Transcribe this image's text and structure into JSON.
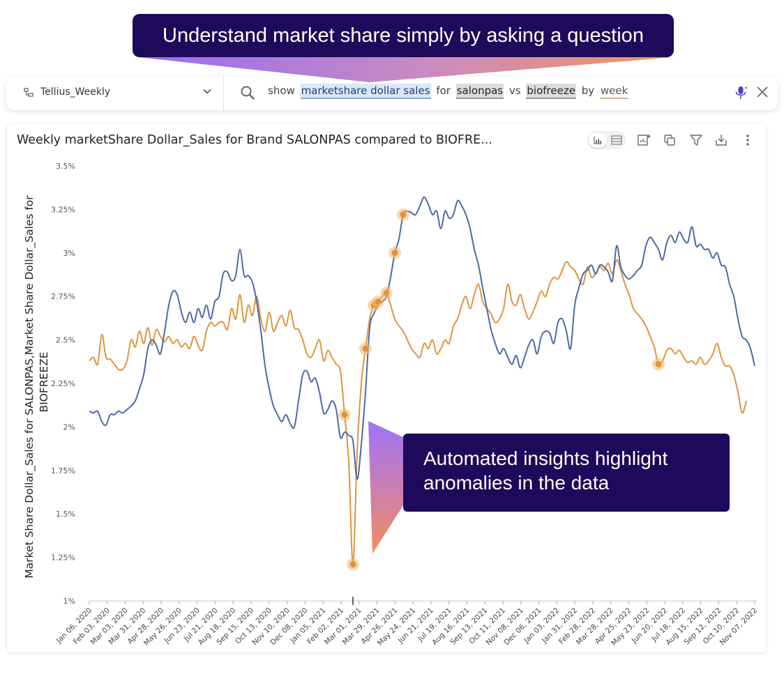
{
  "callouts": {
    "top": "Understand market share simply by asking a question",
    "bottom_line1": "Automated insights highlight",
    "bottom_line2": "anomalies in the data"
  },
  "search": {
    "dataset": "Tellius_Weekly",
    "tokens": [
      {
        "text": "show",
        "kind": "plain"
      },
      {
        "text": "marketshare dollar sales",
        "kind": "measure"
      },
      {
        "text": "for",
        "kind": "plain"
      },
      {
        "text": "salonpas",
        "kind": "entity"
      },
      {
        "text": "vs",
        "kind": "plain"
      },
      {
        "text": "biofreeze",
        "kind": "entity"
      },
      {
        "text": "by",
        "kind": "plain"
      },
      {
        "text": "week",
        "kind": "time"
      }
    ],
    "icons": [
      "database-icon",
      "chevron-down-icon",
      "search-icon",
      "microphone-icon",
      "close-icon"
    ]
  },
  "colors": {
    "callout_bg": "#1e0a5a",
    "salonpas": "#4a6aa5",
    "biofreeze": "#e0943e",
    "anomaly": "#f2b870"
  },
  "chart_data": {
    "type": "line",
    "title": "Weekly marketShare Dollar_Sales for Brand SALONPAS compared to BIOFRE...",
    "ylabel_line1": "Market Share Dollar_Sales for SALONPAS,Market Share Dollar_Sales for",
    "ylabel_line2": "BIOFREEZE",
    "xlabel": "",
    "ylim": [
      1,
      3.5
    ],
    "y_ticks": [
      "1%",
      "1.25%",
      "1.5%",
      "1.75%",
      "2%",
      "2.25%",
      "2.5%",
      "2.75%",
      "3%",
      "3.25%",
      "3.5%"
    ],
    "x_ticks": [
      "Jan 06, 2020",
      "Feb 03, 2020",
      "Mar 03, 2020",
      "Mar 31, 2020",
      "Apr 28, 2020",
      "May 26, 2020",
      "Jun 23, 2020",
      "Jul 21, 2020",
      "Aug 18, 2020",
      "Sep 15, 2020",
      "Oct 13, 2020",
      "Nov 10, 2020",
      "Dec 08, 2020",
      "Jan 05, 2021",
      "Feb 02, 2021",
      "Mar 01, 2021",
      "Mar 29, 2021",
      "Apr 26, 2021",
      "May 24, 2021",
      "Jun 21, 2021",
      "Jul 19, 2021",
      "Aug 16, 2021",
      "Sep 13, 2021",
      "Oct 11, 2021",
      "Nov 08, 2021",
      "Dec 06, 2021",
      "Jan 03, 2022",
      "Jan 31, 2022",
      "Feb 28, 2022",
      "Mar 28, 2022",
      "Apr 25, 2022",
      "May 23, 2022",
      "Jun 20, 2022",
      "Jul 18, 2022",
      "Aug 15, 2022",
      "Sep 12, 2022",
      "Oct 10, 2022",
      "Nov 07, 2022"
    ],
    "grid": false,
    "legend": "none",
    "series": [
      {
        "color": "#4a6aa5",
        "values": [
          2.09,
          2.08,
          2.09,
          2.03,
          2.01,
          2.07,
          2.07,
          2.09,
          2.08,
          2.1,
          2.12,
          2.15,
          2.22,
          2.3,
          2.45,
          2.5,
          2.47,
          2.42,
          2.55,
          2.7,
          2.78,
          2.76,
          2.66,
          2.6,
          2.66,
          2.6,
          2.68,
          2.63,
          2.7,
          2.62,
          2.72,
          2.75,
          2.88,
          2.89,
          2.84,
          2.87,
          3.02,
          2.87,
          2.87,
          2.83,
          2.72,
          2.55,
          2.35,
          2.22,
          2.12,
          2.07,
          2.03,
          2.07,
          2.02,
          2.0,
          2.15,
          2.3,
          2.32,
          2.26,
          2.28,
          2.2,
          2.08,
          2.1,
          2.15,
          2.1,
          1.94,
          1.97,
          1.95,
          1.92,
          1.7,
          1.9,
          2.2,
          2.57,
          2.65,
          2.7,
          2.72,
          2.75,
          2.86,
          3.0,
          3.08,
          3.22,
          3.24,
          3.23,
          3.22,
          3.27,
          3.32,
          3.28,
          3.22,
          3.24,
          3.14,
          3.24,
          3.2,
          3.22,
          3.3,
          3.27,
          3.22,
          3.14,
          3.02,
          2.93,
          2.8,
          2.68,
          2.56,
          2.48,
          2.42,
          2.45,
          2.4,
          2.36,
          2.41,
          2.34,
          2.4,
          2.47,
          2.5,
          2.42,
          2.52,
          2.55,
          2.54,
          2.48,
          2.6,
          2.62,
          2.55,
          2.45,
          2.7,
          2.8,
          2.88,
          2.9,
          2.93,
          2.88,
          2.93,
          2.92,
          2.89,
          2.84,
          3.04,
          2.92,
          2.87,
          2.85,
          2.87,
          2.9,
          2.93,
          3.04,
          3.09,
          3.06,
          3.02,
          2.96,
          3.06,
          3.1,
          3.06,
          3.12,
          3.08,
          3.06,
          3.15,
          3.04,
          3.05,
          3.02,
          3.02,
          2.97,
          3.0,
          2.93,
          2.92,
          2.82,
          2.75,
          2.62,
          2.52,
          2.5,
          2.45,
          2.35
        ]
      },
      {
        "color": "#e0943e",
        "values": [
          2.38,
          2.4,
          2.36,
          2.53,
          2.4,
          2.39,
          2.36,
          2.33,
          2.33,
          2.38,
          2.5,
          2.46,
          2.55,
          2.48,
          2.57,
          2.47,
          2.56,
          2.52,
          2.49,
          2.52,
          2.48,
          2.5,
          2.46,
          2.48,
          2.45,
          2.52,
          2.47,
          2.44,
          2.55,
          2.6,
          2.58,
          2.6,
          2.6,
          2.56,
          2.68,
          2.62,
          2.76,
          2.6,
          2.7,
          2.64,
          2.75,
          2.62,
          2.55,
          2.66,
          2.55,
          2.6,
          2.64,
          2.58,
          2.67,
          2.57,
          2.56,
          2.5,
          2.42,
          2.4,
          2.45,
          2.5,
          2.38,
          2.44,
          2.4,
          2.36,
          2.32,
          2.07,
          1.8,
          1.21,
          1.85,
          2.25,
          2.45,
          2.62,
          2.7,
          2.72,
          2.75,
          2.77,
          2.7,
          2.62,
          2.58,
          2.55,
          2.5,
          2.45,
          2.42,
          2.4,
          2.48,
          2.45,
          2.5,
          2.42,
          2.45,
          2.5,
          2.48,
          2.58,
          2.62,
          2.7,
          2.75,
          2.68,
          2.76,
          2.82,
          2.72,
          2.68,
          2.65,
          2.6,
          2.62,
          2.68,
          2.82,
          2.72,
          2.7,
          2.76,
          2.68,
          2.62,
          2.66,
          2.72,
          2.78,
          2.75,
          2.82,
          2.86,
          2.85,
          2.9,
          2.95,
          2.92,
          2.9,
          2.85,
          2.82,
          2.92,
          2.86,
          2.88,
          2.92,
          2.9,
          2.94,
          2.88,
          2.96,
          2.9,
          2.82,
          2.76,
          2.68,
          2.65,
          2.62,
          2.58,
          2.52,
          2.46,
          2.36,
          2.38,
          2.44,
          2.45,
          2.42,
          2.44,
          2.4,
          2.37,
          2.38,
          2.36,
          2.4,
          2.36,
          2.38,
          2.42,
          2.48,
          2.4,
          2.35,
          2.35,
          2.3,
          2.2,
          2.08,
          2.15
        ]
      }
    ],
    "anomaly_points": [
      {
        "series": 1,
        "index": 61
      },
      {
        "series": 1,
        "index": 63
      },
      {
        "series": 1,
        "index": 66
      },
      {
        "series": 1,
        "index": 68
      },
      {
        "series": 1,
        "index": 69
      },
      {
        "series": 1,
        "index": 71
      },
      {
        "series": 0,
        "index": 73
      },
      {
        "series": 0,
        "index": 75
      },
      {
        "series": 1,
        "index": 136
      }
    ],
    "cursor_index": 63
  }
}
